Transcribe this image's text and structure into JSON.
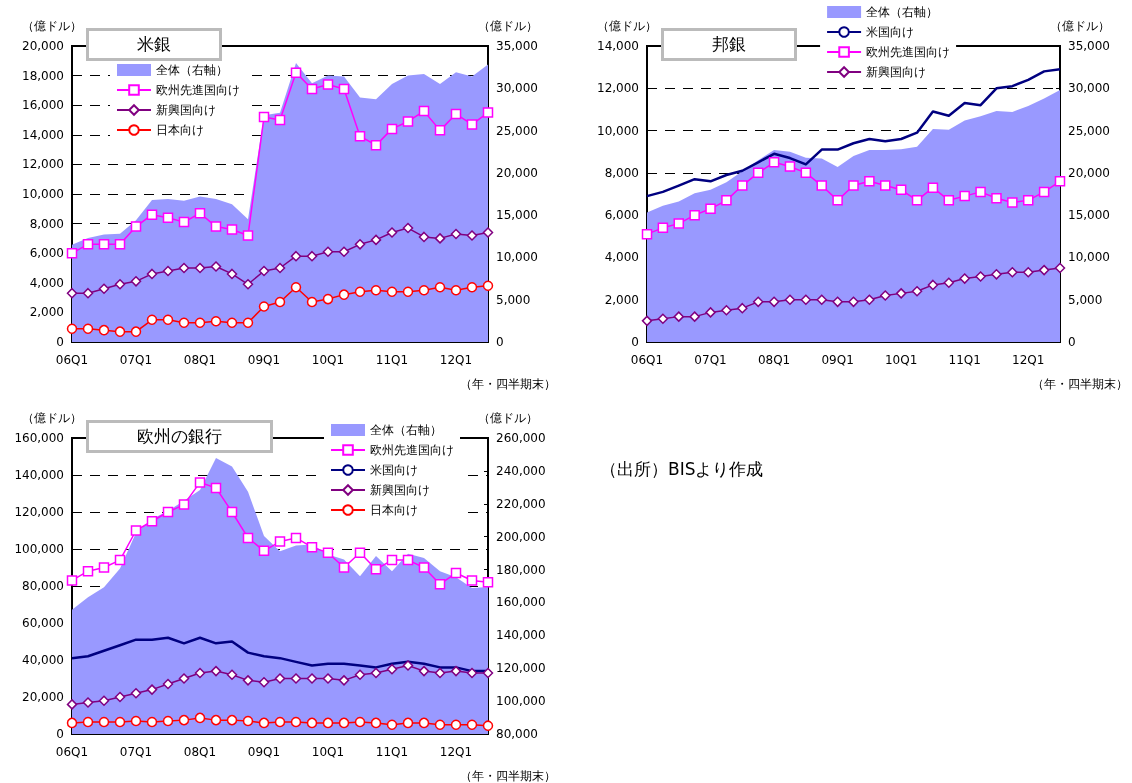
{
  "chart_data": [
    {
      "type": "line",
      "title": "米銀",
      "ylabel": "（億ドル）",
      "y2label": "（億ドル）",
      "xlabel": "（年・四半期末）",
      "categories": [
        "06Q1",
        null,
        null,
        null,
        "07Q1",
        null,
        null,
        null,
        "08Q1",
        null,
        null,
        null,
        "09Q1",
        null,
        null,
        null,
        "10Q1",
        null,
        null,
        null,
        "11Q1",
        null,
        null,
        null,
        "12Q1",
        null,
        null
      ],
      "ylim": [
        0,
        20000
      ],
      "yticks": [
        {
          "value": 0,
          "label": "0"
        },
        {
          "value": 2000,
          "label": "2,000"
        },
        {
          "value": 4000,
          "label": "4,000"
        },
        {
          "value": 6000,
          "label": "6,000"
        },
        {
          "value": 8000,
          "label": "8,000"
        },
        {
          "value": 10000,
          "label": "10,000"
        },
        {
          "value": 12000,
          "label": "12,000"
        },
        {
          "value": 14000,
          "label": "14,000"
        },
        {
          "value": 16000,
          "label": "16,000"
        },
        {
          "value": 18000,
          "label": "18,000"
        },
        {
          "value": 20000,
          "label": "20,000"
        }
      ],
      "y2lim": [
        0,
        35000
      ],
      "y2ticks": [
        0,
        {
          "value": 5000,
          "label": "5,000"
        },
        {
          "value": 10000,
          "label": "10,000"
        },
        {
          "value": 15000,
          "label": "15,000"
        },
        {
          "value": 20000,
          "label": "20,000"
        },
        {
          "value": 25000,
          "label": "25,000"
        },
        {
          "value": 30000,
          "label": "30,000"
        },
        {
          "value": 35000,
          "label": "35,000"
        }
      ],
      "grid": "y",
      "legend": "top left",
      "series": [
        {
          "name": "全体（右軸）",
          "type": "area",
          "axis": "y2",
          "color": "#9999ff",
          "marker": "none",
          "values": [
            11500,
            12300,
            12700,
            12800,
            14400,
            16800,
            16900,
            16700,
            17200,
            16900,
            16300,
            14500,
            26800,
            27100,
            33000,
            30600,
            31500,
            31400,
            28900,
            28700,
            30500,
            31500,
            31700,
            30500,
            31900,
            31400,
            32800
          ]
        },
        {
          "name": "欧州先進国向け",
          "color": "#ff00ff",
          "marker": "square",
          "values": [
            6000,
            6600,
            6600,
            6600,
            7800,
            8600,
            8400,
            8100,
            8700,
            7800,
            7600,
            7200,
            15200,
            15000,
            18200,
            17100,
            17400,
            17100,
            13900,
            13300,
            14400,
            14900,
            15600,
            14300,
            15400,
            14700,
            15500
          ]
        },
        {
          "name": "新興国向け",
          "color": "#800080",
          "marker": "diamond",
          "values": [
            3300,
            3300,
            3600,
            3900,
            4100,
            4600,
            4800,
            5000,
            5000,
            5100,
            4600,
            3900,
            4800,
            5000,
            5800,
            5800,
            6100,
            6100,
            6600,
            6900,
            7400,
            7700,
            7100,
            7000,
            7300,
            7200,
            7400
          ]
        },
        {
          "name": "日本向け",
          "color": "#ff0000",
          "marker": "circle",
          "values": [
            900,
            900,
            800,
            700,
            700,
            1500,
            1500,
            1300,
            1300,
            1400,
            1300,
            1300,
            2400,
            2700,
            3700,
            2700,
            2900,
            3200,
            3400,
            3500,
            3400,
            3400,
            3500,
            3700,
            3500,
            3700,
            3800
          ]
        }
      ]
    },
    {
      "type": "line",
      "title": "邦銀",
      "ylabel": "（億ドル）",
      "y2label": "（億ドル）",
      "xlabel": "（年・四半期末）",
      "categories": [
        "06Q1",
        null,
        null,
        null,
        "07Q1",
        null,
        null,
        null,
        "08Q1",
        null,
        null,
        null,
        "09Q1",
        null,
        null,
        null,
        "10Q1",
        null,
        null,
        null,
        "11Q1",
        null,
        null,
        null,
        "12Q1",
        null,
        null
      ],
      "ylim": [
        0,
        14000
      ],
      "yticks": [
        {
          "value": 0,
          "label": "0"
        },
        {
          "value": 2000,
          "label": "2,000"
        },
        {
          "value": 4000,
          "label": "4,000"
        },
        {
          "value": 6000,
          "label": "6,000"
        },
        {
          "value": 8000,
          "label": "8,000"
        },
        {
          "value": 10000,
          "label": "10,000"
        },
        {
          "value": 12000,
          "label": "12,000"
        },
        {
          "value": 14000,
          "label": "14,000"
        }
      ],
      "y2lim": [
        0,
        35000
      ],
      "y2ticks": [
        0,
        {
          "value": 5000,
          "label": "5,000"
        },
        {
          "value": 10000,
          "label": "10,000"
        },
        {
          "value": 15000,
          "label": "15,000"
        },
        {
          "value": 20000,
          "label": "20,000"
        },
        {
          "value": 25000,
          "label": "25,000"
        },
        {
          "value": 30000,
          "label": "30,000"
        },
        {
          "value": 35000,
          "label": "35,000"
        }
      ],
      "grid": "y",
      "legend": "top",
      "series": [
        {
          "name": "全体（右軸）",
          "type": "area",
          "axis": "y2",
          "color": "#9999ff",
          "marker": "none",
          "values": [
            15300,
            16100,
            16600,
            17600,
            18000,
            18900,
            20200,
            21500,
            22700,
            22500,
            21800,
            21700,
            20700,
            22000,
            22700,
            22700,
            22800,
            23100,
            25200,
            25100,
            26200,
            26700,
            27300,
            27200,
            27900,
            28800,
            29800
          ]
        },
        {
          "name": "米国向け",
          "color": "#000080",
          "marker": "none",
          "values": [
            6900,
            7100,
            7400,
            7700,
            7600,
            7900,
            8100,
            8500,
            8900,
            8700,
            8400,
            9100,
            9100,
            9400,
            9600,
            9500,
            9600,
            9900,
            10900,
            10700,
            11300,
            11200,
            12000,
            12100,
            12400,
            12800,
            12900
          ]
        },
        {
          "name": "欧州先進国向け",
          "color": "#ff00ff",
          "marker": "square",
          "values": [
            5100,
            5400,
            5600,
            6000,
            6300,
            6700,
            7400,
            8000,
            8500,
            8300,
            8000,
            7400,
            6700,
            7400,
            7600,
            7400,
            7200,
            6700,
            7300,
            6700,
            6900,
            7100,
            6800,
            6600,
            6700,
            7100,
            7600
          ]
        },
        {
          "name": "新興国向け",
          "color": "#800080",
          "marker": "diamond",
          "values": [
            1000,
            1100,
            1200,
            1200,
            1400,
            1500,
            1600,
            1900,
            1900,
            2000,
            2000,
            2000,
            1900,
            1900,
            2000,
            2200,
            2300,
            2400,
            2700,
            2800,
            3000,
            3100,
            3200,
            3300,
            3300,
            3400,
            3500
          ]
        }
      ]
    },
    {
      "type": "line",
      "title": "欧州の銀行",
      "ylabel": "（億ドル）",
      "y2label": "（億ドル）",
      "xlabel": "（年・四半期末）",
      "categories": [
        "06Q1",
        null,
        null,
        null,
        "07Q1",
        null,
        null,
        null,
        "08Q1",
        null,
        null,
        null,
        "09Q1",
        null,
        null,
        null,
        "10Q1",
        null,
        null,
        null,
        "11Q1",
        null,
        null,
        null,
        "12Q1",
        null,
        null
      ],
      "ylim": [
        0,
        160000
      ],
      "yticks": [
        {
          "value": 0,
          "label": "0"
        },
        {
          "value": 20000,
          "label": "20,000"
        },
        {
          "value": 40000,
          "label": "40,000"
        },
        {
          "value": 60000,
          "label": "60,000"
        },
        {
          "value": 80000,
          "label": "80,000"
        },
        {
          "value": 100000,
          "label": "100,000"
        },
        {
          "value": 120000,
          "label": "120,000"
        },
        {
          "value": 140000,
          "label": "140,000"
        },
        {
          "value": 160000,
          "label": "160,000"
        }
      ],
      "y2lim": [
        80000,
        260000
      ],
      "y2ticks": [
        {
          "value": 80000,
          "label": "80,000"
        },
        {
          "value": 100000,
          "label": "100,000"
        },
        {
          "value": 120000,
          "label": "120,000"
        },
        {
          "value": 140000,
          "label": "140,000"
        },
        {
          "value": 160000,
          "label": "160,000"
        },
        {
          "value": 180000,
          "label": "180,000"
        },
        {
          "value": 200000,
          "label": "200,000"
        },
        {
          "value": 220000,
          "label": "220,000"
        },
        {
          "value": 240000,
          "label": "240,000"
        },
        {
          "value": 260000,
          "label": "260,000"
        }
      ],
      "grid": "y",
      "legend": "top right",
      "annotations": [
        "（出所）BISより作成"
      ],
      "series": [
        {
          "name": "全体（右軸）",
          "type": "area",
          "axis": "y2",
          "color": "#9999ff",
          "marker": "none",
          "values": [
            155500,
            163100,
            169200,
            180600,
            202400,
            210600,
            215700,
            221800,
            228400,
            247800,
            242700,
            227300,
            200400,
            191200,
            194700,
            195300,
            189200,
            186100,
            175900,
            188200,
            179000,
            189600,
            187100,
            179000,
            175300,
            168800,
            169400
          ]
        },
        {
          "name": "欧州先進国向け",
          "color": "#ff00ff",
          "marker": "square",
          "values": [
            83000,
            88000,
            90000,
            94000,
            110000,
            115000,
            120000,
            124000,
            136000,
            133000,
            120000,
            106000,
            99000,
            104000,
            106000,
            101000,
            98000,
            90000,
            98000,
            89000,
            94000,
            94000,
            90000,
            81000,
            87000,
            83000,
            82000
          ]
        },
        {
          "name": "米国向け",
          "color": "#000080",
          "marker": "none",
          "values": [
            41000,
            42000,
            45000,
            48000,
            51000,
            51000,
            52000,
            49000,
            52000,
            49000,
            50000,
            44000,
            42000,
            41000,
            39000,
            37000,
            38000,
            38000,
            37000,
            36000,
            38000,
            39000,
            38000,
            36000,
            36000,
            34000,
            34000
          ]
        },
        {
          "name": "新興国向け",
          "color": "#800080",
          "marker": "diamond",
          "values": [
            16000,
            17000,
            18000,
            20000,
            22000,
            24000,
            27000,
            30000,
            33000,
            34000,
            32000,
            29000,
            28000,
            30000,
            30000,
            30000,
            30000,
            29000,
            32000,
            33000,
            35000,
            37000,
            34000,
            33000,
            34000,
            33000,
            33000
          ]
        },
        {
          "name": "日本向け",
          "color": "#ff0000",
          "marker": "circle",
          "values": [
            6000,
            6500,
            6500,
            6500,
            7000,
            6500,
            7000,
            7500,
            8700,
            7500,
            7500,
            7000,
            6000,
            6500,
            6500,
            6000,
            6000,
            6000,
            6500,
            6000,
            5000,
            6000,
            6000,
            5000,
            5000,
            5000,
            4500
          ]
        }
      ]
    }
  ]
}
